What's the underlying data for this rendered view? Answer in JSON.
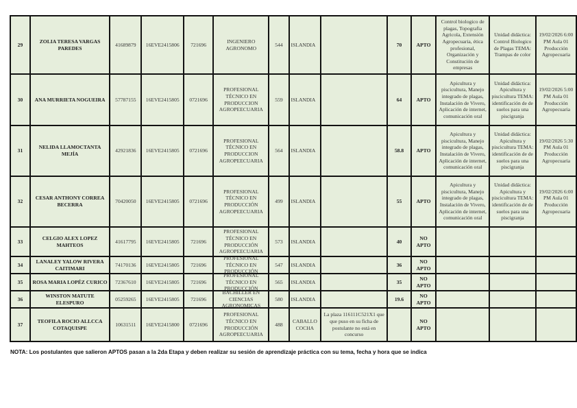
{
  "table": {
    "rows": [
      {
        "num": "29",
        "name": "ZOLIA TERESA VARGAS PAREDES",
        "dni": "41689879",
        "code": "16EVE2415806",
        "plaza": "721696",
        "profile": "INGENIERO AGRONOMO",
        "id": "544",
        "location": "ISLANDIA",
        "observation": "",
        "score": "70",
        "status": "APTO",
        "courses": "Control biologico de plagas, Topografia Agricola, Extensión Agropecuaria, ética profesional, Organización y Constitución de empresas",
        "theme": "Unidad didáctica: Control Biologico de Plagas TEMA: Trampas de color",
        "schedule": "19/02/2026 6:00 PM Aula 01 Producción Agropecuaria"
      },
      {
        "num": "30",
        "name": "ANA MURRIETA NOGUEIRA",
        "dni": "57787155",
        "code": "16EVE2415805",
        "plaza": "0721696",
        "profile": "PROFESIONAL TÉCNICO EN PRODUCCION AGROPEECUARIA",
        "id": "559",
        "location": "ISLANDIA",
        "observation": "",
        "score": "64",
        "status": "APTO",
        "courses": "Apicultura y piscicultura, Manejo integrado de plagas, Instalación de Vivero, Aplicación de internet, comunicación oral",
        "theme": "Unidad didáctica: Apicultura y piscicultura TEMA: identificación de de suelos para una piscigranja",
        "schedule": "19/02/2026 5:00 PM Aula 01 Producción Agropecuaria"
      },
      {
        "num": "31",
        "name": "NELIDA LLAMOCTANTA MEJÍA",
        "dni": "42921836",
        "code": "16EVE2415805",
        "plaza": "0721696",
        "profile": "PROFESIONAL TÉCNICO EN PRODUCCION AGROPEECUARIA",
        "id": "564",
        "location": "ISLANDIA",
        "observation": "",
        "score": "58.8",
        "status": "APTO",
        "courses": "Apicultura y piscicultura, Manejo integrado de plagas, Instalación de Vivero, Aplicación de internet, comunicación oral",
        "theme": "Unidad didáctica: Apicultura y piscicultura TEMA: identificación de de suelos para una piscigranja",
        "schedule": "19/02/2026 5:30 PM Aula 01 Producción Agropecuaria"
      },
      {
        "num": "32",
        "name": "CESAR ANTHONY CORREA BECERRA",
        "dni": "70420050",
        "code": "16EVE2415805",
        "plaza": "0721696",
        "profile": "PROFESIONAL TÉCNICO EN PRODUCCIÓN AGROPEECUARIA",
        "id": "499",
        "location": "ISLANDIA",
        "observation": "",
        "score": "55",
        "status": "APTO",
        "courses": "Apicultura y piscicultura, Manejo integrado de plagas, Instalación de Vivero, Aplicación de internet, comunicación oral",
        "theme": "Unidad didáctica: Apicultura y piscicultura TEMA: identificación de de suelos para una piscigranja",
        "schedule": "19/02/2026 6:00 PM Aula 01 Producción Agropecuaria"
      },
      {
        "num": "33",
        "name": "CELGIO ALEX LOPEZ MAHTEOS",
        "dni": "41617795",
        "code": "16EVE2415805",
        "plaza": "721696",
        "profile": "PROFESIONAL TÉCNICO EN PRODUCCIÓN AGROPEECUARIA",
        "id": "573",
        "location": "ISLANDIA",
        "observation": "",
        "score": "40",
        "status": "NO APTO",
        "courses": "",
        "theme": "",
        "schedule": ""
      },
      {
        "num": "34",
        "name": "LANALEY YALOW RIVERA CAITIMARI",
        "dni": "74170136",
        "code": "16EVE2415805",
        "plaza": "721696",
        "profile": "PROFESIONAL TÉCNICO EN PRODUCCIÓN",
        "id": "547",
        "location": "ISLANDIA",
        "observation": "",
        "score": "36",
        "status": "NO APTO",
        "courses": "",
        "theme": "",
        "schedule": ""
      },
      {
        "num": "35",
        "name": "ROSA MARIA LOPÉZ CURICO",
        "dni": "72367610",
        "code": "16EVE2415805",
        "plaza": "721696",
        "profile": "PROFESIONAL TÉCNICO EN PRODUCCIÓN",
        "id": "565",
        "location": "ISLANDIA",
        "observation": "",
        "score": "35",
        "status": "NO APTO",
        "courses": "",
        "theme": "",
        "schedule": ""
      },
      {
        "num": "36",
        "name": "WINSTON MATUTE ELESPURO",
        "dni": "05259265",
        "code": "16EVE2415805",
        "plaza": "721696",
        "profile": "BACHILLER EN CIENCIAS AGRONOMICAS",
        "id": "580",
        "location": "ISLANDIA",
        "observation": "",
        "score": "19.6",
        "status": "NO APTO",
        "courses": "",
        "theme": "",
        "schedule": ""
      },
      {
        "num": "37",
        "name": "TEOFILA ROCIO ALLCCA COTAQUISPE",
        "dni": "10631511",
        "code": "16EVE2415800",
        "plaza": "0721696",
        "profile": "PROFESIONAL TÉCNICO EN PRODUCCIÓN AGROPEECUARIA",
        "id": "488",
        "location": "CABALLO COCHA",
        "observation": "La plaza 116111C521X1 que que puso en su ficha de postulante no está en concurso",
        "score": "",
        "status": "NO APTO",
        "courses": "",
        "theme": "",
        "schedule": ""
      }
    ]
  },
  "note": "NOTA: Los postulantes que salieron APTOS pasan a la 2da Etapa y deben realizar su sesión de aprendizaje práctica con su tema, fecha y hora que se indica"
}
